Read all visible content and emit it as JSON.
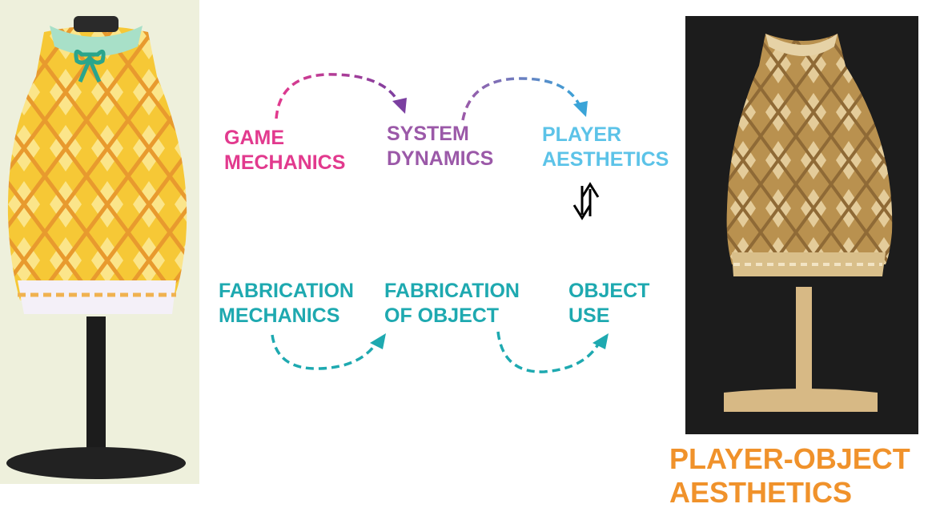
{
  "colors": {
    "game_mechanics": "#e23a8e",
    "system_dynamics": "#9b59a8",
    "player_aesthetics": "#5cc3e8",
    "fabrication": "#1ea9b0",
    "player_object": "#f0922b",
    "digital_dress": "#f6c836",
    "wood_dress": "#caa56a",
    "photo_background": "#1c1c1c"
  },
  "labels": {
    "game_mechanics": [
      "GAME",
      "MECHANICS"
    ],
    "system_dynamics": [
      "SYSTEM",
      "DYNAMICS"
    ],
    "player_aesthetics": [
      "PLAYER",
      "AESTHETICS"
    ],
    "fabrication_mechanics": [
      "FABRICATION",
      "MECHANICS"
    ],
    "fabrication_of_object": [
      "FABRICATION",
      "OF OBJECT"
    ],
    "object_use": [
      "OBJECT",
      "USE"
    ],
    "player_object_aesthetics": [
      "PLAYER-OBJECT",
      "AESTHETICS"
    ]
  },
  "images": {
    "left": "digital-dress-on-mannequin",
    "right": "laser-cut-wooden-dress-on-dark-background"
  },
  "icons": {
    "bidirectional": "up-down-arrows-icon"
  }
}
